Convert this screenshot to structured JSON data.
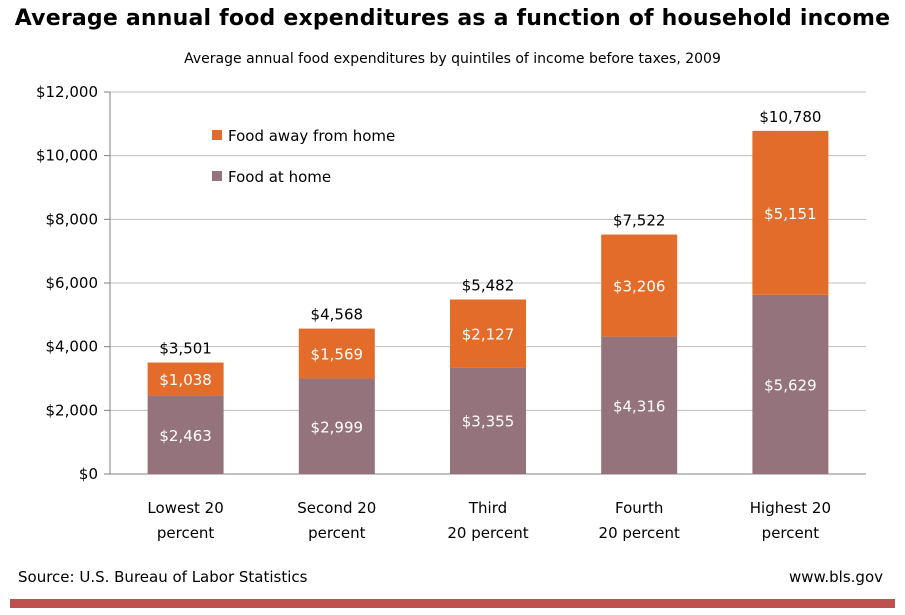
{
  "title": "Average annual food expenditures as a function of household income",
  "subtitle": "Average annual food expenditures by quintiles of income before taxes, 2009",
  "source": "Source: U.S. Bureau of Labor Statistics",
  "site": "www.bls.gov",
  "colors": {
    "food_away": "#e36c2a",
    "food_home": "#95737d",
    "grid": "#bfbfbf",
    "axis": "#808080",
    "rule": "#c0504d"
  },
  "chart_data": {
    "type": "bar",
    "stacked": true,
    "categories": [
      [
        "Lowest 20",
        "percent"
      ],
      [
        "Second 20",
        "percent"
      ],
      [
        "Third",
        "20 percent"
      ],
      [
        "Fourth",
        "20 percent"
      ],
      [
        "Highest 20",
        "percent"
      ]
    ],
    "series": [
      {
        "name": "Food at home",
        "color": "#95737d",
        "values": [
          2463,
          2999,
          3355,
          4316,
          5629
        ],
        "labels": [
          "$2,463",
          "$2,999",
          "$3,355",
          "$4,316",
          "$5,629"
        ]
      },
      {
        "name": "Food away  from home",
        "color": "#e36c2a",
        "values": [
          1038,
          1569,
          2127,
          3206,
          5151
        ],
        "labels": [
          "$1,038",
          "$1,569",
          "$2,127",
          "$3,206",
          "$5,151"
        ]
      }
    ],
    "totals": [
      3501,
      4568,
      5482,
      7522,
      10780
    ],
    "total_labels": [
      "$3,501",
      "$4,568",
      "$5,482",
      "$7,522",
      "$10,780"
    ],
    "ylim": [
      0,
      12000
    ],
    "yticks": [
      0,
      2000,
      4000,
      6000,
      8000,
      10000,
      12000
    ],
    "ytick_labels": [
      "$0",
      "$2,000",
      "$4,000",
      "$6,000",
      "$8,000",
      "$10,000",
      "$12,000"
    ],
    "legend": {
      "position": "top-left",
      "entries": [
        "Food away  from home",
        "Food at home"
      ],
      "colors": [
        "#e36c2a",
        "#95737d"
      ]
    },
    "grid": true,
    "xlabel": "",
    "ylabel": ""
  }
}
